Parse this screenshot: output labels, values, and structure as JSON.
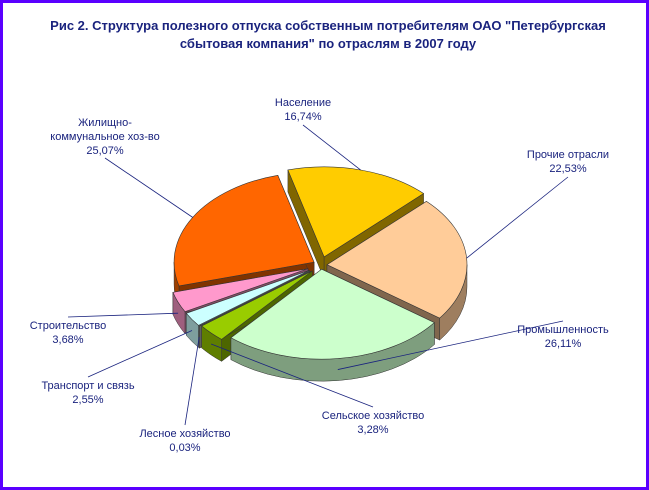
{
  "chart_data": {
    "type": "pie",
    "title": "Рис 2. Структура полезного отпуска собственным потребителям ОАО \"Петербургская сбытовая компания\" по отраслям в 2007 году",
    "title_lines": [
      "Рис 2. Структура полезного отпуска собственным потребителям ОАО \"Петербургская",
      "сбытовая компания\" по отраслям в 2007 году"
    ],
    "exploded": true,
    "three_d": true,
    "slices": [
      {
        "name": "Население",
        "name_lines": [
          "Население"
        ],
        "value": 16.74,
        "label": "16,74%",
        "color": "#ffcc00"
      },
      {
        "name": "Прочие отрасли",
        "name_lines": [
          "Прочие отрасли"
        ],
        "value": 22.53,
        "label": "22,53%",
        "color": "#ffcc99"
      },
      {
        "name": "Промышленность",
        "name_lines": [
          "Промышленность"
        ],
        "value": 26.11,
        "label": "26,11%",
        "color": "#ccffcc"
      },
      {
        "name": "Сельское хозяйство",
        "name_lines": [
          "Сельское хозяйство"
        ],
        "value": 3.28,
        "label": "3,28%",
        "color": "#99cc00"
      },
      {
        "name": "Лесное хозяйство",
        "name_lines": [
          "Лесное хозяйство"
        ],
        "value": 0.03,
        "label": "0,03%",
        "color": "#c0c0c0"
      },
      {
        "name": "Транспорт и связь",
        "name_lines": [
          "Транспорт и связь"
        ],
        "value": 2.55,
        "label": "2,55%",
        "color": "#ccffff"
      },
      {
        "name": "Строительство",
        "name_lines": [
          "Строительство"
        ],
        "value": 3.68,
        "label": "3,68%",
        "color": "#ff99cc"
      },
      {
        "name": "Жилищно-коммунальное хоз-во",
        "name_lines": [
          "Жилищно-",
          "коммунальное хоз-во"
        ],
        "value": 25.07,
        "label": "25,07%",
        "color": "#ff6600"
      }
    ]
  }
}
